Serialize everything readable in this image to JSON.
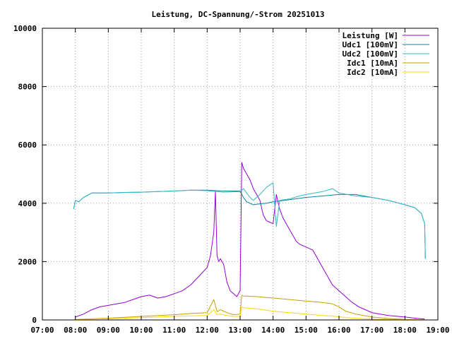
{
  "chart_data": {
    "type": "line",
    "title": "Leistung, DC-Spannung/-Strom 20251013",
    "xlabel": "",
    "ylabel": "",
    "xlim": [
      7,
      19
    ],
    "ylim": [
      0,
      10000
    ],
    "x_ticks": [
      "07:00",
      "08:00",
      "09:00",
      "10:00",
      "11:00",
      "12:00",
      "13:00",
      "14:00",
      "15:00",
      "16:00",
      "17:00",
      "18:00",
      "19:00"
    ],
    "y_ticks": [
      "0",
      "2000",
      "4000",
      "6000",
      "8000",
      "10000"
    ],
    "grid": true,
    "legend_position": "top-right",
    "series": [
      {
        "name": "Leistung [W]",
        "color": "#9400d3",
        "x": [
          8.0,
          8.25,
          8.5,
          8.75,
          9.0,
          9.25,
          9.5,
          9.75,
          10.0,
          10.25,
          10.5,
          10.75,
          11.0,
          11.25,
          11.5,
          11.75,
          12.0,
          12.1,
          12.15,
          12.2,
          12.25,
          12.3,
          12.35,
          12.4,
          12.5,
          12.6,
          12.7,
          12.8,
          12.9,
          13.0,
          13.05,
          13.1,
          13.2,
          13.3,
          13.4,
          13.5,
          13.6,
          13.7,
          13.8,
          14.0,
          14.1,
          14.2,
          14.3,
          14.4,
          14.5,
          14.6,
          14.7,
          14.8,
          15.0,
          15.2,
          15.4,
          15.6,
          15.8,
          16.0,
          16.2,
          16.4,
          16.6,
          16.8,
          17.0,
          17.5,
          18.0,
          18.3,
          18.6
        ],
        "y": [
          100,
          200,
          350,
          450,
          500,
          550,
          600,
          700,
          800,
          850,
          750,
          800,
          900,
          1000,
          1200,
          1500,
          1800,
          2200,
          2600,
          3000,
          4400,
          2200,
          2000,
          2100,
          1900,
          1300,
          1000,
          900,
          800,
          1000,
          5400,
          5200,
          5000,
          4800,
          4500,
          4300,
          4100,
          3600,
          3400,
          3300,
          4300,
          3800,
          3500,
          3300,
          3100,
          2900,
          2700,
          2600,
          2500,
          2400,
          2000,
          1600,
          1200,
          1000,
          800,
          600,
          450,
          350,
          250,
          150,
          100,
          60,
          30
        ]
      },
      {
        "name": "Udc1 [100mV]",
        "color": "#00889a",
        "x": [
          7.95,
          8.0,
          8.1,
          8.25,
          8.5,
          9.0,
          9.5,
          10.0,
          10.5,
          11.0,
          11.5,
          12.0,
          12.5,
          13.0,
          13.1,
          13.2,
          13.4,
          13.6,
          13.8,
          14.0,
          14.2,
          14.5,
          15.0,
          15.5,
          16.0,
          16.5,
          17.0,
          17.5,
          18.0,
          18.3,
          18.5,
          18.6,
          18.62
        ],
        "y": [
          3800,
          4100,
          4050,
          4200,
          4350,
          4350,
          4370,
          4380,
          4400,
          4420,
          4450,
          4450,
          4420,
          4420,
          4200,
          4050,
          3950,
          3980,
          4000,
          4050,
          4080,
          4120,
          4200,
          4250,
          4300,
          4300,
          4200,
          4100,
          3950,
          3850,
          3650,
          3300,
          2100
        ]
      },
      {
        "name": "Udc2 [100mV]",
        "color": "#33b8c8",
        "x": [
          7.95,
          8.0,
          8.1,
          8.25,
          8.5,
          9.0,
          9.5,
          10.0,
          10.5,
          11.0,
          11.5,
          12.0,
          12.5,
          13.0,
          13.1,
          13.2,
          13.3,
          13.4,
          13.6,
          13.8,
          14.0,
          14.1,
          14.2,
          14.5,
          14.8,
          15.0,
          15.5,
          15.8,
          16.0,
          16.5,
          17.0,
          17.5,
          18.0,
          18.3,
          18.5,
          18.6,
          18.62
        ],
        "y": [
          3800,
          4100,
          4050,
          4200,
          4350,
          4350,
          4370,
          4380,
          4400,
          4420,
          4450,
          4430,
          4380,
          4400,
          4500,
          4350,
          4200,
          4100,
          4300,
          4550,
          4700,
          3200,
          4100,
          4150,
          4250,
          4300,
          4400,
          4500,
          4350,
          4250,
          4200,
          4100,
          3950,
          3850,
          3650,
          3300,
          2100
        ]
      },
      {
        "name": "Idc1 [10mA]",
        "color": "#c8a000",
        "x": [
          8.0,
          9.0,
          10.0,
          11.0,
          11.5,
          12.0,
          12.2,
          12.3,
          12.4,
          12.6,
          12.8,
          13.0,
          13.05,
          13.1,
          13.5,
          14.0,
          14.5,
          15.0,
          15.5,
          15.8,
          16.0,
          16.2,
          16.5,
          17.0,
          17.5,
          18.0,
          18.6
        ],
        "y": [
          20,
          60,
          120,
          180,
          220,
          250,
          700,
          280,
          350,
          250,
          180,
          200,
          850,
          820,
          800,
          750,
          700,
          650,
          600,
          550,
          450,
          300,
          200,
          100,
          50,
          20,
          0
        ]
      },
      {
        "name": "Idc2 [10mA]",
        "color": "#ffd800",
        "x": [
          8.0,
          9.0,
          10.0,
          11.0,
          11.5,
          12.0,
          12.2,
          12.3,
          12.4,
          12.6,
          12.8,
          13.0,
          13.05,
          13.1,
          13.5,
          14.0,
          14.5,
          15.0,
          15.5,
          15.8,
          16.0,
          16.2,
          16.5,
          17.0,
          17.5,
          18.0,
          18.6
        ],
        "y": [
          15,
          40,
          80,
          120,
          140,
          150,
          350,
          180,
          200,
          150,
          120,
          120,
          450,
          420,
          380,
          300,
          250,
          200,
          150,
          130,
          110,
          80,
          60,
          30,
          20,
          10,
          0
        ]
      }
    ]
  }
}
